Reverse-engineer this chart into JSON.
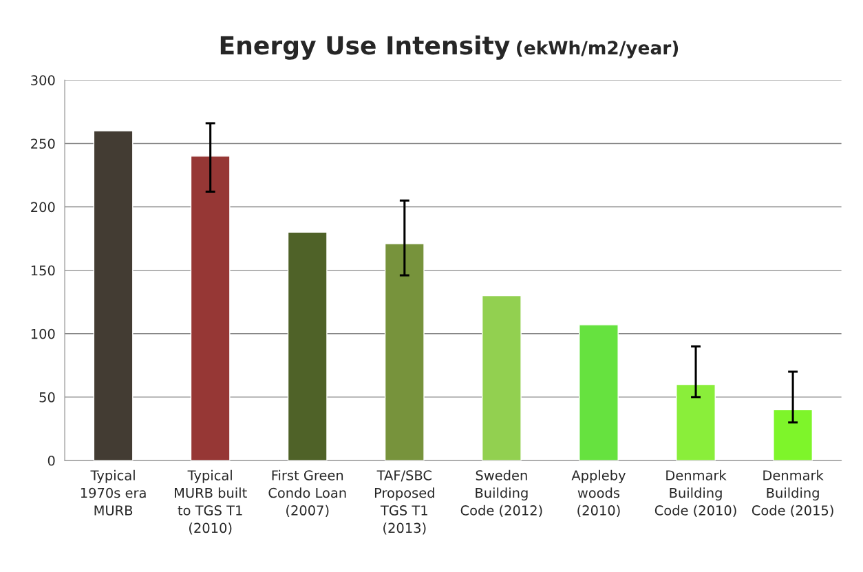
{
  "chart_data": {
    "type": "bar",
    "title": "Energy Use Intensity",
    "subtitle": "(ekWh/m2/year)",
    "categories": [
      "Typical\n1970s era\nMURB",
      "Typical\nMURB built\nto TGS T1\n(2010)",
      "First Green\nCondo Loan\n(2007)",
      "TAF/SBC\nProposed\nTGS T1\n(2013)",
      "Sweden\nBuilding\nCode (2012)",
      "Appleby\nwoods\n(2010)",
      "Denmark\nBuilding\nCode (2010)",
      "Denmark\nBuilding\nCode (2015)"
    ],
    "values": [
      260,
      240,
      180,
      171,
      130,
      107,
      60,
      40
    ],
    "colors": [
      "#433c33",
      "#963735",
      "#4f6228",
      "#77933c",
      "#92d050",
      "#66e23f",
      "#8aee3a",
      "#7ef52a"
    ],
    "errors": [
      null,
      [
        212,
        266
      ],
      null,
      [
        146,
        205
      ],
      null,
      null,
      [
        50,
        90
      ],
      [
        30,
        70
      ]
    ],
    "ylim": [
      0,
      300
    ],
    "yticks": [
      0,
      50,
      100,
      150,
      200,
      250,
      300
    ],
    "grid": "y",
    "legend": false
  }
}
